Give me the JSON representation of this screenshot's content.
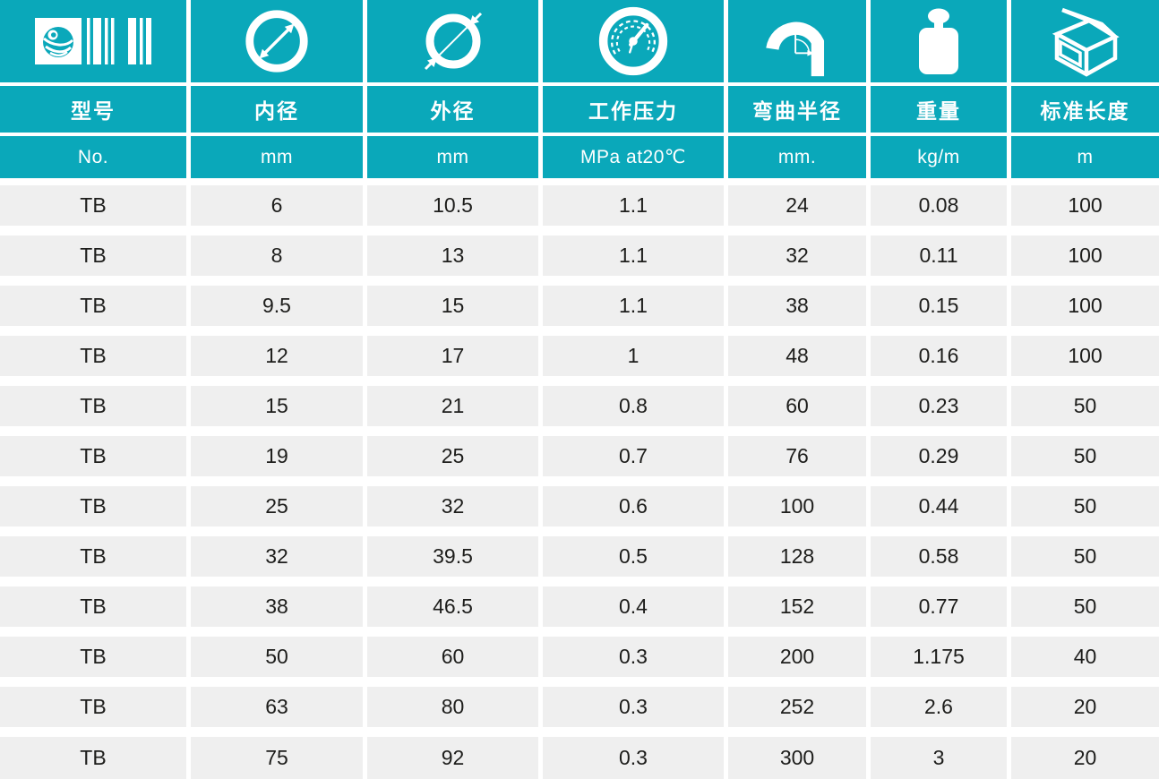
{
  "theme": {
    "teal": "#0aa8ba",
    "row_gray": "#efefef",
    "text_dark": "#1d1d1b",
    "white": "#ffffff"
  },
  "table": {
    "columns": [
      {
        "id": "model",
        "icon": "logo-barcode-icon",
        "title": "型号",
        "unit": "No."
      },
      {
        "id": "inner-diameter",
        "icon": "inner-diameter-icon",
        "title": "内径",
        "unit": "mm"
      },
      {
        "id": "outer-diameter",
        "icon": "outer-diameter-icon",
        "title": "外径",
        "unit": "mm"
      },
      {
        "id": "working-pressure",
        "icon": "pressure-gauge-icon",
        "title": "工作压力",
        "unit": "MPa at20℃"
      },
      {
        "id": "bend-radius",
        "icon": "bend-radius-icon",
        "title": "弯曲半径",
        "unit": "mm."
      },
      {
        "id": "weight",
        "icon": "weight-icon",
        "title": "重量",
        "unit": "kg/m"
      },
      {
        "id": "standard-length",
        "icon": "carton-box-icon",
        "title": "标准长度",
        "unit": "m"
      }
    ],
    "rows": [
      [
        "TB",
        "6",
        "10.5",
        "1.1",
        "24",
        "0.08",
        "100"
      ],
      [
        "TB",
        "8",
        "13",
        "1.1",
        "32",
        "0.11",
        "100"
      ],
      [
        "TB",
        "9.5",
        "15",
        "1.1",
        "38",
        "0.15",
        "100"
      ],
      [
        "TB",
        "12",
        "17",
        "1",
        "48",
        "0.16",
        "100"
      ],
      [
        "TB",
        "15",
        "21",
        "0.8",
        "60",
        "0.23",
        "50"
      ],
      [
        "TB",
        "19",
        "25",
        "0.7",
        "76",
        "0.29",
        "50"
      ],
      [
        "TB",
        "25",
        "32",
        "0.6",
        "100",
        "0.44",
        "50"
      ],
      [
        "TB",
        "32",
        "39.5",
        "0.5",
        "128",
        "0.58",
        "50"
      ],
      [
        "TB",
        "38",
        "46.5",
        "0.4",
        "152",
        "0.77",
        "50"
      ],
      [
        "TB",
        "50",
        "60",
        "0.3",
        "200",
        "1.175",
        "40"
      ],
      [
        "TB",
        "63",
        "80",
        "0.3",
        "252",
        "2.6",
        "20"
      ],
      [
        "TB",
        "75",
        "92",
        "0.3",
        "300",
        "3",
        "20"
      ]
    ]
  }
}
